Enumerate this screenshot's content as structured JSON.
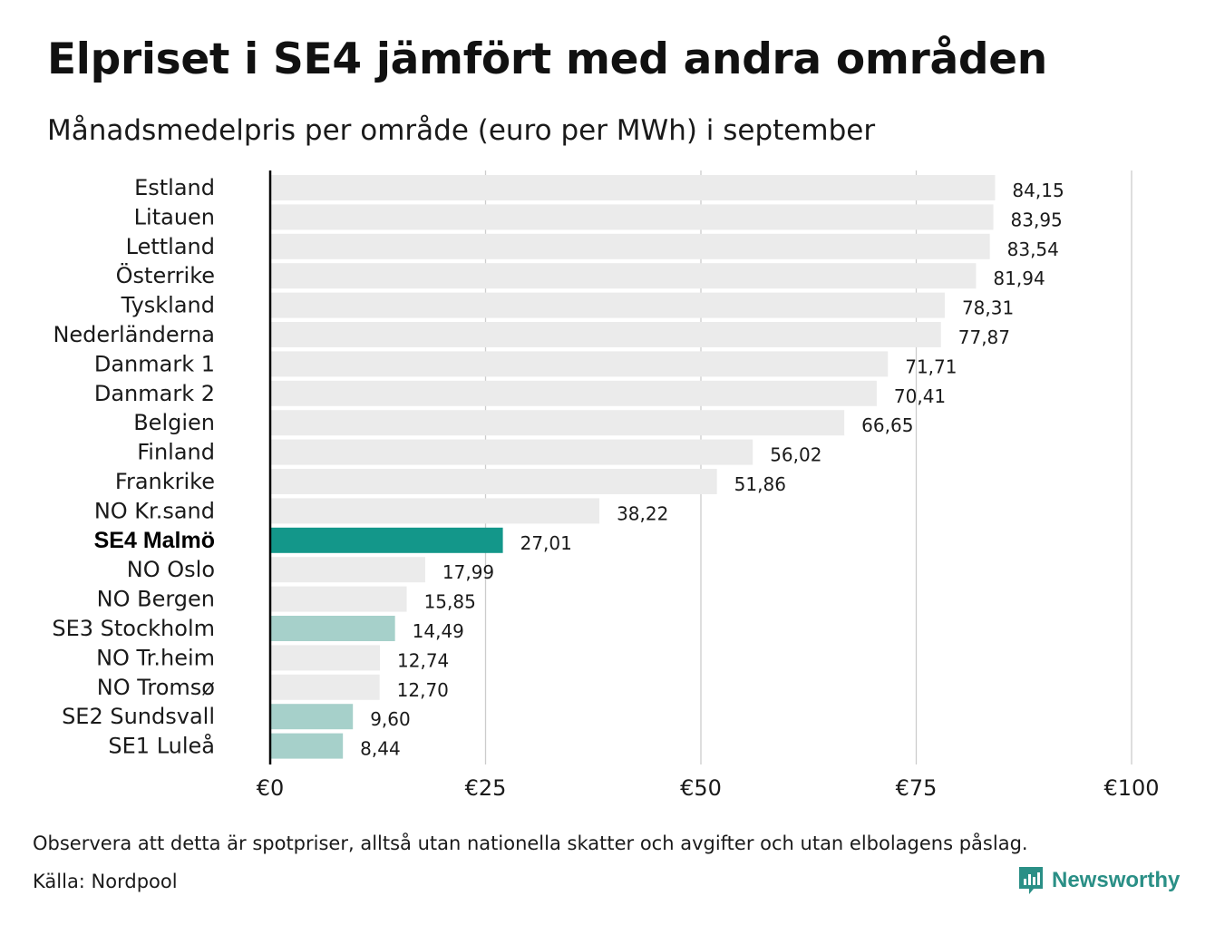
{
  "title": "Elpriset i SE4 jämfört med andra områden",
  "subtitle": "Månadsmedelpris per område (euro per MWh) i september",
  "note": "Observera att detta är spotpriser, alltså utan nationella skatter och avgifter och utan elbolagens påslag.",
  "source": "Källa: Nordpool",
  "brand": {
    "name": "Newsworthy",
    "icon": "newsworthy-logo-icon",
    "color": "#2a8f86"
  },
  "colors": {
    "default": "#ebebeb",
    "highlight": "#13978a",
    "sweden": "#a6d0ca",
    "grid": "#cccccc",
    "axis": "#000000"
  },
  "chart_data": {
    "type": "bar",
    "orientation": "horizontal",
    "title": "Elpriset i SE4 jämfört med andra områden",
    "subtitle": "Månadsmedelpris per område (euro per MWh) i september",
    "categories": [
      "Estland",
      "Litauen",
      "Lettland",
      "Österrike",
      "Tyskland",
      "Nederländerna",
      "Danmark 1",
      "Danmark 2",
      "Belgien",
      "Finland",
      "Frankrike",
      "NO Kr.sand",
      "SE4 Malmö",
      "NO Oslo",
      "NO Bergen",
      "SE3 Stockholm",
      "NO Tr.heim",
      "NO Tromsø",
      "SE2 Sundsvall",
      "SE1 Luleå"
    ],
    "values": [
      84.15,
      83.95,
      83.54,
      81.94,
      78.31,
      77.87,
      71.71,
      70.41,
      66.65,
      56.02,
      51.86,
      38.22,
      27.01,
      17.99,
      15.85,
      14.49,
      12.74,
      12.7,
      9.6,
      8.44
    ],
    "value_labels": [
      "84,15",
      "83,95",
      "83,54",
      "81,94",
      "78,31",
      "77,87",
      "71,71",
      "70,41",
      "66,65",
      "56,02",
      "51,86",
      "38,22",
      "27,01",
      "17,99",
      "15,85",
      "14,49",
      "12,74",
      "12,70",
      "9,60",
      "8,44"
    ],
    "bar_groups": [
      "default",
      "default",
      "default",
      "default",
      "default",
      "default",
      "default",
      "default",
      "default",
      "default",
      "default",
      "default",
      "highlight",
      "default",
      "default",
      "sweden",
      "default",
      "default",
      "sweden",
      "sweden"
    ],
    "bold_categories": [
      "SE4 Malmö"
    ],
    "xlim": [
      0,
      100
    ],
    "x_ticks": [
      0,
      25,
      50,
      75,
      100
    ],
    "x_tick_labels": [
      "€0",
      "€25",
      "€50",
      "€75",
      "€100"
    ],
    "grid": true
  }
}
